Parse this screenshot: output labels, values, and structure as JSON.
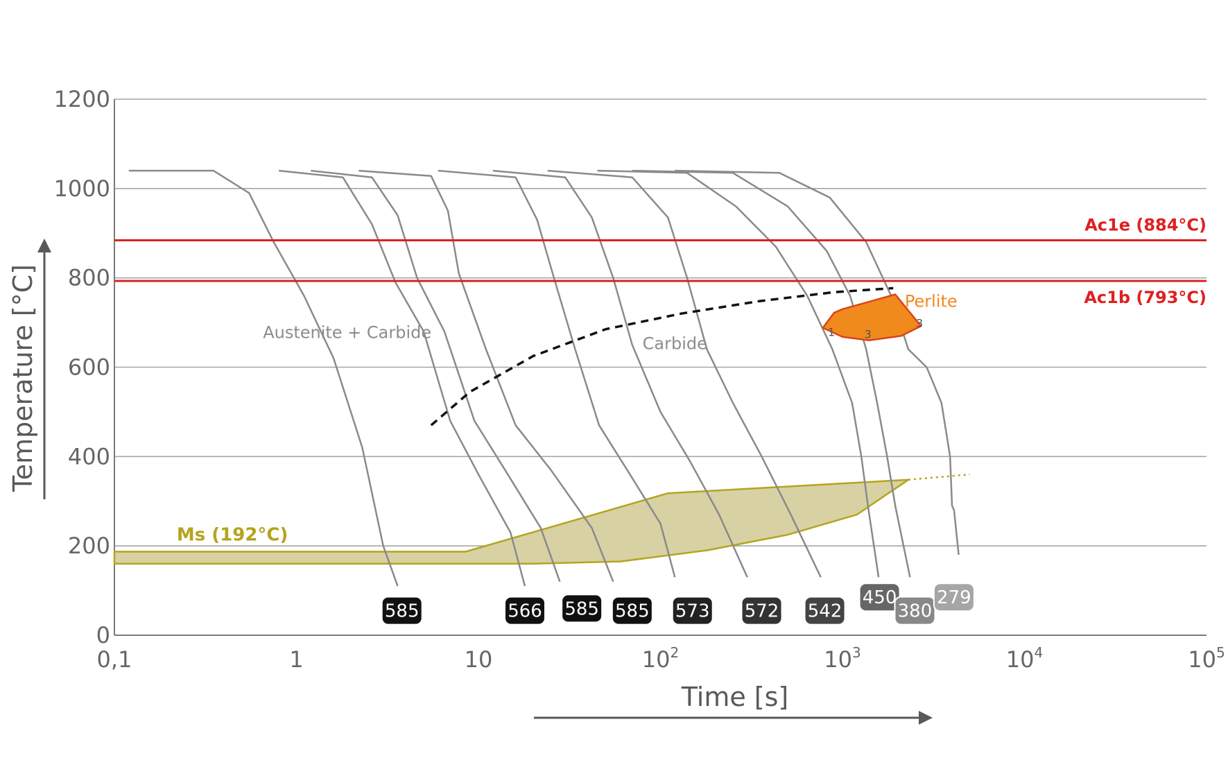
{
  "chart_data": {
    "type": "line",
    "title": "",
    "xlabel": "Time [s]",
    "ylabel": "Temperature [°C]",
    "xscale": "log",
    "xlim": [
      0.1,
      100000
    ],
    "ylim": [
      0,
      1200
    ],
    "x_ticks": [
      {
        "value": 0.1,
        "base": "0,1",
        "exp": ""
      },
      {
        "value": 1,
        "base": "1",
        "exp": ""
      },
      {
        "value": 10,
        "base": "10",
        "exp": ""
      },
      {
        "value": 100,
        "base": "10",
        "exp": "2"
      },
      {
        "value": 1000,
        "base": "10",
        "exp": "3"
      },
      {
        "value": 10000,
        "base": "10",
        "exp": "4"
      },
      {
        "value": 100000,
        "base": "10",
        "exp": "5"
      }
    ],
    "y_ticks": [
      0,
      200,
      400,
      600,
      800,
      1000,
      1200
    ],
    "grid": true,
    "reference_lines": [
      {
        "label": "Ac1e (884°C)",
        "y": 884,
        "color": "#e02020"
      },
      {
        "label": "Ac1b (793°C)",
        "y": 793,
        "color": "#e02020"
      }
    ],
    "ms": {
      "label": "Ms (192°C)",
      "color": "#b5a41d",
      "fill": "#d8d1a4"
    },
    "regions": [
      {
        "label": "Austenite + Carbide",
        "x": 1.9,
        "y": 665
      },
      {
        "label": "Carbide",
        "x": 120,
        "y": 640
      }
    ],
    "perlite": {
      "label": "Perlite",
      "color": "#f08a1c",
      "markers": [
        {
          "text": "1",
          "x": 870,
          "y": 670
        },
        {
          "text": "3",
          "x": 1380,
          "y": 665
        },
        {
          "text": "3",
          "x": 2650,
          "y": 690
        }
      ]
    },
    "start_curve": {
      "style": "dashed",
      "points": [
        [
          5.5,
          470
        ],
        [
          9,
          545
        ],
        [
          20,
          625
        ],
        [
          50,
          685
        ],
        [
          130,
          720
        ],
        [
          350,
          748
        ],
        [
          900,
          768
        ],
        [
          1900,
          777
        ]
      ]
    },
    "cooling_curves": [
      {
        "hardness": "585",
        "label_x": 3.8,
        "label_y": 55,
        "label_color": "#111111",
        "points": [
          [
            0.12,
            1040
          ],
          [
            0.35,
            1040
          ],
          [
            0.55,
            990
          ],
          [
            0.75,
            880
          ],
          [
            1.1,
            760
          ],
          [
            1.6,
            620
          ],
          [
            2.3,
            420
          ],
          [
            3.0,
            200
          ],
          [
            3.6,
            110
          ]
        ]
      },
      {
        "hardness": "566",
        "label_x": 18,
        "label_y": 55,
        "label_color": "#111111",
        "points": [
          [
            0.8,
            1040
          ],
          [
            1.8,
            1025
          ],
          [
            2.6,
            920
          ],
          [
            3.5,
            790
          ],
          [
            5.0,
            680
          ],
          [
            7.0,
            480
          ],
          [
            10,
            360
          ],
          [
            15,
            230
          ],
          [
            18,
            110
          ]
        ]
      },
      {
        "hardness": "585",
        "label_x": 37,
        "label_y": 60,
        "label_color": "#111111",
        "points": [
          [
            1.2,
            1040
          ],
          [
            2.6,
            1025
          ],
          [
            3.6,
            940
          ],
          [
            4.6,
            800
          ],
          [
            6.5,
            680
          ],
          [
            9.5,
            480
          ],
          [
            14,
            370
          ],
          [
            22,
            240
          ],
          [
            28,
            120
          ]
        ]
      },
      {
        "hardness": "585",
        "label_x": 70,
        "label_y": 55,
        "label_color": "#111111",
        "points": [
          [
            2.2,
            1040
          ],
          [
            5.5,
            1028
          ],
          [
            6.8,
            950
          ],
          [
            7.8,
            810
          ],
          [
            11,
            640
          ],
          [
            16,
            470
          ],
          [
            25,
            370
          ],
          [
            42,
            240
          ],
          [
            55,
            120
          ]
        ]
      },
      {
        "hardness": "573",
        "label_x": 150,
        "label_y": 55,
        "label_color": "#222222",
        "points": [
          [
            6,
            1040
          ],
          [
            16,
            1025
          ],
          [
            21,
            930
          ],
          [
            26,
            800
          ],
          [
            34,
            640
          ],
          [
            46,
            470
          ],
          [
            68,
            360
          ],
          [
            100,
            250
          ],
          [
            120,
            130
          ]
        ]
      },
      {
        "hardness": "572",
        "label_x": 360,
        "label_y": 55,
        "label_color": "#333333",
        "points": [
          [
            12,
            1040
          ],
          [
            30,
            1025
          ],
          [
            42,
            935
          ],
          [
            55,
            800
          ],
          [
            70,
            650
          ],
          [
            100,
            500
          ],
          [
            145,
            390
          ],
          [
            210,
            270
          ],
          [
            300,
            130
          ]
        ]
      },
      {
        "hardness": "542",
        "label_x": 800,
        "label_y": 55,
        "label_color": "#444444",
        "points": [
          [
            24,
            1040
          ],
          [
            70,
            1025
          ],
          [
            110,
            935
          ],
          [
            140,
            800
          ],
          [
            180,
            640
          ],
          [
            250,
            520
          ],
          [
            360,
            400
          ],
          [
            520,
            270
          ],
          [
            760,
            130
          ]
        ]
      },
      {
        "hardness": "450",
        "label_x": 1600,
        "label_y": 85,
        "label_color": "#666666",
        "points": [
          [
            45,
            1040
          ],
          [
            140,
            1035
          ],
          [
            260,
            960
          ],
          [
            430,
            870
          ],
          [
            640,
            760
          ],
          [
            880,
            640
          ],
          [
            1130,
            520
          ],
          [
            1270,
            400
          ],
          [
            1380,
            290
          ],
          [
            1580,
            130
          ]
        ]
      },
      {
        "hardness": "380",
        "label_x": 2500,
        "label_y": 55,
        "label_color": "#888888",
        "points": [
          [
            70,
            1040
          ],
          [
            250,
            1035
          ],
          [
            500,
            960
          ],
          [
            820,
            860
          ],
          [
            1100,
            760
          ],
          [
            1350,
            640
          ],
          [
            1550,
            520
          ],
          [
            1760,
            400
          ],
          [
            1950,
            290
          ],
          [
            2350,
            130
          ]
        ]
      },
      {
        "hardness": "279",
        "label_x": 4100,
        "label_y": 85,
        "label_color": "#a6a6a6",
        "points": [
          [
            120,
            1040
          ],
          [
            450,
            1035
          ],
          [
            850,
            980
          ],
          [
            1350,
            880
          ],
          [
            1850,
            760
          ],
          [
            2300,
            640
          ],
          [
            2900,
            600
          ],
          [
            3500,
            520
          ],
          [
            3900,
            400
          ],
          [
            4000,
            290
          ],
          [
            4100,
            280
          ],
          [
            4350,
            180
          ]
        ]
      }
    ]
  }
}
